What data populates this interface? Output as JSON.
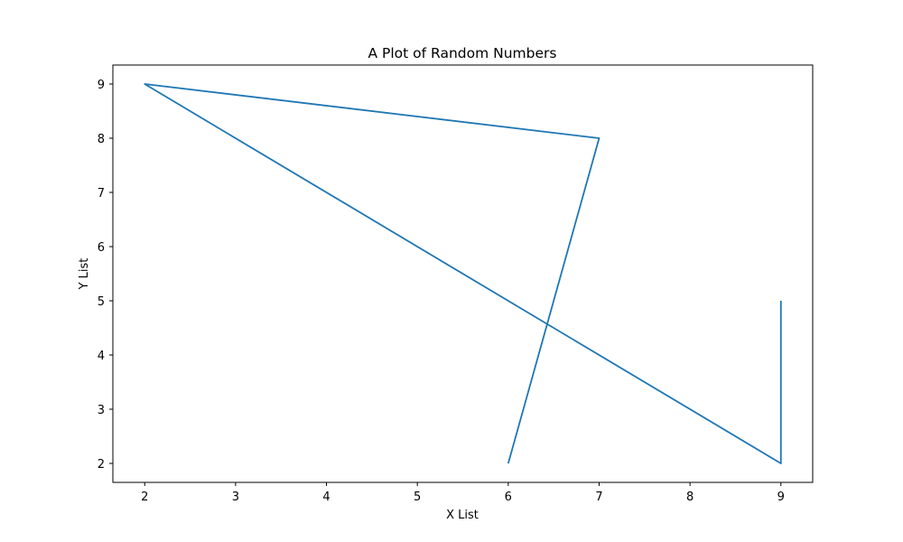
{
  "chart_data": {
    "type": "line",
    "title": "A Plot of Random Numbers",
    "xlabel": "X List",
    "ylabel": "Y List",
    "xlim": [
      1.65,
      9.35
    ],
    "ylim": [
      1.65,
      9.35
    ],
    "xticks": [
      2,
      3,
      4,
      5,
      6,
      7,
      8,
      9
    ],
    "yticks": [
      2,
      3,
      4,
      5,
      6,
      7,
      8,
      9
    ],
    "grid": false,
    "series": [
      {
        "x": [
          6,
          7,
          2,
          9,
          9
        ],
        "y": [
          2,
          8,
          9,
          2,
          5
        ],
        "color": "#1f77b4"
      }
    ]
  }
}
